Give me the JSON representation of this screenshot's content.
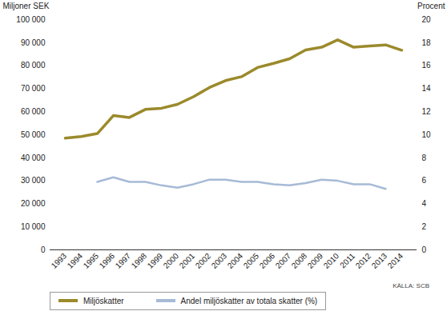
{
  "chart_data": {
    "type": "line",
    "y_label": "Miljoner SEK",
    "y2_label": "Procent",
    "source": "KÄLLA: SCB",
    "x": [
      1993,
      1994,
      1995,
      1996,
      1997,
      1998,
      1999,
      2000,
      2001,
      2002,
      2003,
      2004,
      2005,
      2006,
      2007,
      2008,
      2009,
      2010,
      2011,
      2012,
      2013,
      2014
    ],
    "ylim": [
      0,
      100000
    ],
    "yticks": [
      0,
      {
        "value": 10000,
        "label": "10 000"
      },
      {
        "value": 20000,
        "label": "20 000"
      },
      {
        "value": 30000,
        "label": "30 000"
      },
      {
        "value": 40000,
        "label": "40 000"
      },
      {
        "value": 50000,
        "label": "50 000"
      },
      {
        "value": 60000,
        "label": "60 000"
      },
      {
        "value": 70000,
        "label": "70 000"
      },
      {
        "value": 80000,
        "label": "80 000"
      },
      {
        "value": 90000,
        "label": "90 000"
      },
      {
        "value": 100000,
        "label": "100 000"
      }
    ],
    "y2lim": [
      0,
      20
    ],
    "y2ticks": [
      0,
      2,
      4,
      6,
      8,
      10,
      12,
      14,
      16,
      18,
      20
    ],
    "grid": false,
    "legend": "bottom",
    "series": [
      {
        "name": "Miljöskatter",
        "color": "#9b8a2c",
        "values": [
          48500,
          49200,
          50500,
          58300,
          57500,
          61000,
          61500,
          63200,
          66500,
          70500,
          73500,
          75200,
          79200,
          81000,
          83000,
          86800,
          88000,
          91200,
          88000,
          88500,
          89000,
          86700
        ]
      },
      {
        "name": "Andel miljöskatter av totala skatter (%)",
        "color": "#a6bad6",
        "axis": "y2",
        "values": [
          null,
          null,
          5.9,
          6.3,
          5.9,
          5.9,
          5.6,
          5.4,
          5.7,
          6.1,
          6.1,
          5.9,
          5.9,
          5.7,
          5.6,
          5.8,
          6.1,
          6.0,
          5.7,
          5.7,
          5.3,
          null
        ]
      }
    ]
  }
}
